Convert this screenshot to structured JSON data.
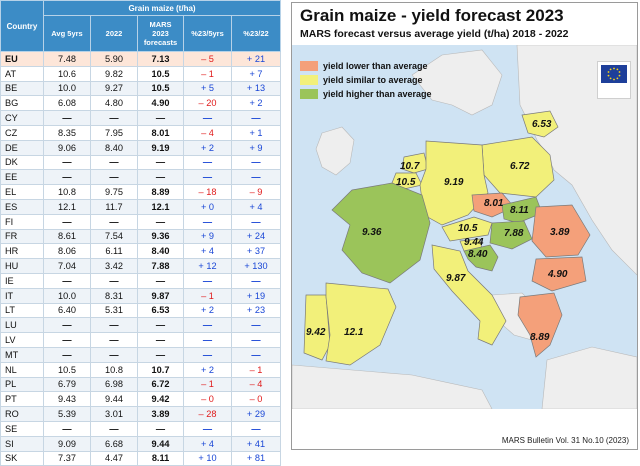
{
  "table": {
    "header_country": "Country",
    "header_group": "Grain maize (t/ha)",
    "columns": [
      "Avg 5yrs",
      "2022",
      "MARS 2023 forecasts",
      "%23/5yrs",
      "%23/22"
    ],
    "rows": [
      {
        "country": "EU",
        "avg": "7.48",
        "y2022": "5.90",
        "f2023": "7.13",
        "pct5": "– 5",
        "pct22": "+ 21"
      },
      {
        "country": "AT",
        "avg": "10.6",
        "y2022": "9.82",
        "f2023": "10.5",
        "pct5": "– 1",
        "pct22": "+ 7"
      },
      {
        "country": "BE",
        "avg": "10.0",
        "y2022": "9.27",
        "f2023": "10.5",
        "pct5": "+ 5",
        "pct22": "+ 13"
      },
      {
        "country": "BG",
        "avg": "6.08",
        "y2022": "4.80",
        "f2023": "4.90",
        "pct5": "– 20",
        "pct22": "+ 2"
      },
      {
        "country": "CY",
        "avg": "—",
        "y2022": "—",
        "f2023": "—",
        "pct5": "—",
        "pct22": "—"
      },
      {
        "country": "CZ",
        "avg": "8.35",
        "y2022": "7.95",
        "f2023": "8.01",
        "pct5": "– 4",
        "pct22": "+ 1"
      },
      {
        "country": "DE",
        "avg": "9.06",
        "y2022": "8.40",
        "f2023": "9.19",
        "pct5": "+ 2",
        "pct22": "+ 9"
      },
      {
        "country": "DK",
        "avg": "—",
        "y2022": "—",
        "f2023": "—",
        "pct5": "—",
        "pct22": "—"
      },
      {
        "country": "EE",
        "avg": "—",
        "y2022": "—",
        "f2023": "—",
        "pct5": "—",
        "pct22": "—"
      },
      {
        "country": "EL",
        "avg": "10.8",
        "y2022": "9.75",
        "f2023": "8.89",
        "pct5": "– 18",
        "pct22": "– 9"
      },
      {
        "country": "ES",
        "avg": "12.1",
        "y2022": "11.7",
        "f2023": "12.1",
        "pct5": "+ 0",
        "pct22": "+ 4"
      },
      {
        "country": "FI",
        "avg": "—",
        "y2022": "—",
        "f2023": "—",
        "pct5": "—",
        "pct22": "—"
      },
      {
        "country": "FR",
        "avg": "8.61",
        "y2022": "7.54",
        "f2023": "9.36",
        "pct5": "+ 9",
        "pct22": "+ 24"
      },
      {
        "country": "HR",
        "avg": "8.06",
        "y2022": "6.11",
        "f2023": "8.40",
        "pct5": "+ 4",
        "pct22": "+ 37"
      },
      {
        "country": "HU",
        "avg": "7.04",
        "y2022": "3.42",
        "f2023": "7.88",
        "pct5": "+ 12",
        "pct22": "+ 130"
      },
      {
        "country": "IE",
        "avg": "—",
        "y2022": "—",
        "f2023": "—",
        "pct5": "—",
        "pct22": "—"
      },
      {
        "country": "IT",
        "avg": "10.0",
        "y2022": "8.31",
        "f2023": "9.87",
        "pct5": "– 1",
        "pct22": "+ 19"
      },
      {
        "country": "LT",
        "avg": "6.40",
        "y2022": "5.31",
        "f2023": "6.53",
        "pct5": "+ 2",
        "pct22": "+ 23"
      },
      {
        "country": "LU",
        "avg": "—",
        "y2022": "—",
        "f2023": "—",
        "pct5": "—",
        "pct22": "—"
      },
      {
        "country": "LV",
        "avg": "—",
        "y2022": "—",
        "f2023": "—",
        "pct5": "—",
        "pct22": "—"
      },
      {
        "country": "MT",
        "avg": "—",
        "y2022": "—",
        "f2023": "—",
        "pct5": "—",
        "pct22": "—"
      },
      {
        "country": "NL",
        "avg": "10.5",
        "y2022": "10.8",
        "f2023": "10.7",
        "pct5": "+ 2",
        "pct22": "– 1"
      },
      {
        "country": "PL",
        "avg": "6.79",
        "y2022": "6.98",
        "f2023": "6.72",
        "pct5": "– 1",
        "pct22": "– 4"
      },
      {
        "country": "PT",
        "avg": "9.43",
        "y2022": "9.44",
        "f2023": "9.42",
        "pct5": "– 0",
        "pct22": "– 0"
      },
      {
        "country": "RO",
        "avg": "5.39",
        "y2022": "3.01",
        "f2023": "3.89",
        "pct5": "– 28",
        "pct22": "+ 29"
      },
      {
        "country": "SE",
        "avg": "—",
        "y2022": "—",
        "f2023": "—",
        "pct5": "—",
        "pct22": "—"
      },
      {
        "country": "SI",
        "avg": "9.09",
        "y2022": "6.68",
        "f2023": "9.44",
        "pct5": "+ 4",
        "pct22": "+ 41"
      },
      {
        "country": "SK",
        "avg": "7.37",
        "y2022": "4.47",
        "f2023": "8.11",
        "pct5": "+ 10",
        "pct22": "+ 81"
      }
    ]
  },
  "map": {
    "title": "Grain maize - yield forecast 2023",
    "subtitle": "MARS forecast versus average yield (t/ha) 2018 - 2022",
    "legend": [
      {
        "label": "yield lower than average",
        "color": "#f4a07a"
      },
      {
        "label": "yield similar to average",
        "color": "#f2f07a"
      },
      {
        "label": "yield higher than average",
        "color": "#9bc45a"
      }
    ],
    "footer": "MARS Bulletin Vol. 31 No.10 (2023)",
    "values": {
      "LT": "6.53",
      "PL": "6.72",
      "NL": "10.7",
      "BE": "10.5",
      "DE": "9.19",
      "CZ": "8.01",
      "SK": "8.11",
      "FR": "9.36",
      "AT": "10.5",
      "HU": "7.88",
      "SI": "9.44",
      "HR": "8.40",
      "RO": "3.89",
      "BG": "4.90",
      "IT": "9.87",
      "PT": "9.42",
      "ES": "12.1",
      "EL": "8.89"
    }
  },
  "colors": {
    "header_blue": "#3c8cc6",
    "eu_row": "#fde6d9",
    "negative": "#e01b1b",
    "positive": "#1a47d6",
    "sea": "#cfe3f3",
    "non_eu_land": "#eeeeee",
    "lower": "#f4a07a",
    "similar": "#f2f07a",
    "higher": "#9bc45a"
  }
}
